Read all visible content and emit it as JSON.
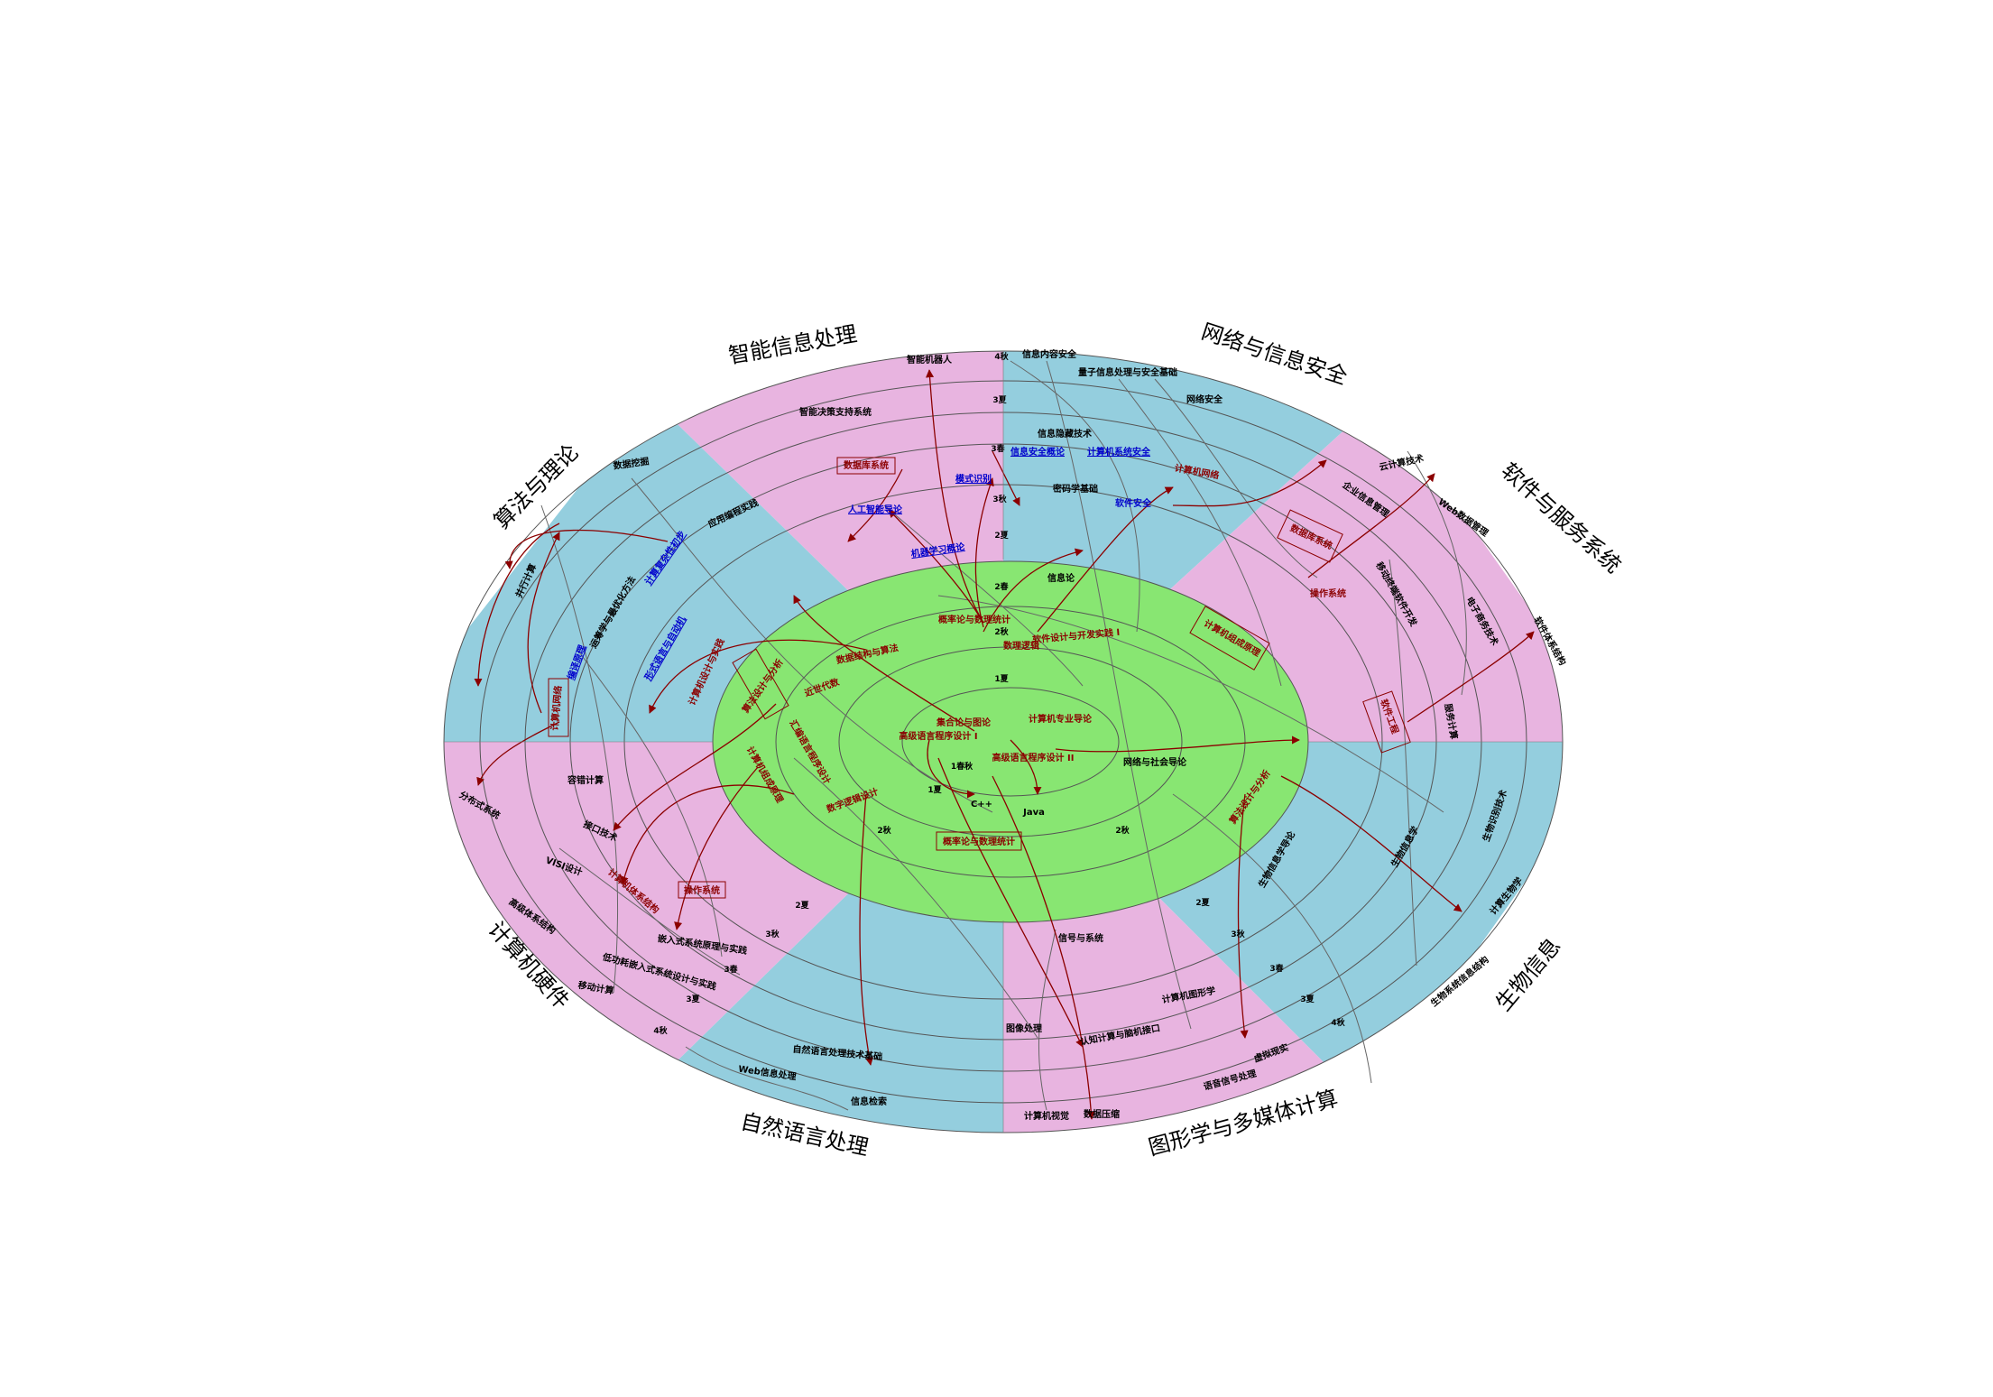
{
  "colors": {
    "pink": "#e8b4e0",
    "blue": "#94cede",
    "core": "#88e672",
    "red_text": "#8b0000",
    "blue_text": "#0000cc",
    "black_text": "#000000",
    "arrow": "#8b0000",
    "line": "#666666"
  },
  "sectors": [
    {
      "key": "intelligent",
      "label": "智能信息处理"
    },
    {
      "key": "network",
      "label": "网络与信息安全"
    },
    {
      "key": "software",
      "label": "软件与服务系统"
    },
    {
      "key": "bio",
      "label": "生物信息"
    },
    {
      "key": "graphics",
      "label": "图形学与多媒体计算"
    },
    {
      "key": "nlp",
      "label": "自然语言处理"
    },
    {
      "key": "hardware",
      "label": "计算机硬件"
    },
    {
      "key": "algo",
      "label": "算法与理论"
    }
  ],
  "terms": [
    "4秋",
    "3夏",
    "3春",
    "3秋",
    "2夏",
    "2春",
    "2秋",
    "1夏",
    "1春秋",
    "1夏",
    "2秋",
    "2秋",
    "2夏",
    "3秋",
    "3春",
    "3夏",
    "4秋",
    "2夏",
    "3秋",
    "3春",
    "3夏",
    "4秋"
  ],
  "courses": {
    "c1": "智能机器人",
    "c2": "智能决策支持系统",
    "c3": "数据库系统",
    "c4": "人工智能导论",
    "c5": "模式识别",
    "c6": "机器学习概论",
    "c7": "信息内容安全",
    "c8": "量子信息处理与安全基础",
    "c9": "网络安全",
    "c10": "信息隐藏技术",
    "c11": "信息安全概论",
    "c12": "计算机系统安全",
    "c13": "计算机网络",
    "c14": "密码学基础",
    "c15": "软件安全",
    "c16": "信息论",
    "c17": "云计算技术",
    "c18": "企业信息管理",
    "c19": "Web数据管理",
    "c20": "数据库系统",
    "c21": "移动终端软件开发",
    "c22": "操作系统",
    "c23": "电子商务技术",
    "c24": "软件体系结构",
    "c25": "软件工程",
    "c26": "服务计算",
    "c27": "计算机组成原理",
    "c28": "数据挖掘",
    "c29": "应用编程实践",
    "c30": "并行计算",
    "c31": "计算复杂性初步",
    "c32": "运筹学与最优化方法",
    "c33": "编译原理",
    "c34": "形式语言与自动机",
    "c35": "计算机网络",
    "c36": "计算机设计与实践",
    "c37": "算法设计与分析",
    "c38": "近世代数",
    "c39": "数据结构与算法",
    "c40": "概率论与数理统计",
    "c41": "软件设计与开发实践 I",
    "c42": "数理逻辑",
    "c43": "集合论与图论",
    "c44": "高级语言程序设计 I",
    "c45": "计算机专业导论",
    "c46": "高级语言程序设计 II",
    "c47": "网络与社会导论",
    "c48": "汇编语言程序设计",
    "c49": "计算机组成原理",
    "c50": "数字逻辑设计",
    "c51": "C++",
    "c52": "Java",
    "c53": "概率论与数理统计",
    "c54": "算法设计与分析",
    "c55": "生物信息学导论",
    "c56": "生物信息学",
    "c57": "生物识别技术",
    "c58": "计算生物学",
    "c59": "生物系统信息结构",
    "c60": "容错计算",
    "c61": "分布式系统",
    "c62": "接口技术",
    "c63": "VISI设计",
    "c64": "计算机体系结构",
    "c65": "操作系统",
    "c66": "高级体系结构",
    "c67": "嵌入式系统原理与实践",
    "c68": "低功耗嵌入式系统设计与实践",
    "c69": "移动计算",
    "c70": "信号与系统",
    "c71": "计算机图形学",
    "c72": "图像处理",
    "c73": "认知计算与脑机接口",
    "c74": "虚拟现实",
    "c75": "语音信号处理",
    "c76": "计算机视觉",
    "c77": "数据压缩",
    "c78": "自然语言处理技术基础",
    "c79": "Web信息处理",
    "c80": "信息检索"
  }
}
